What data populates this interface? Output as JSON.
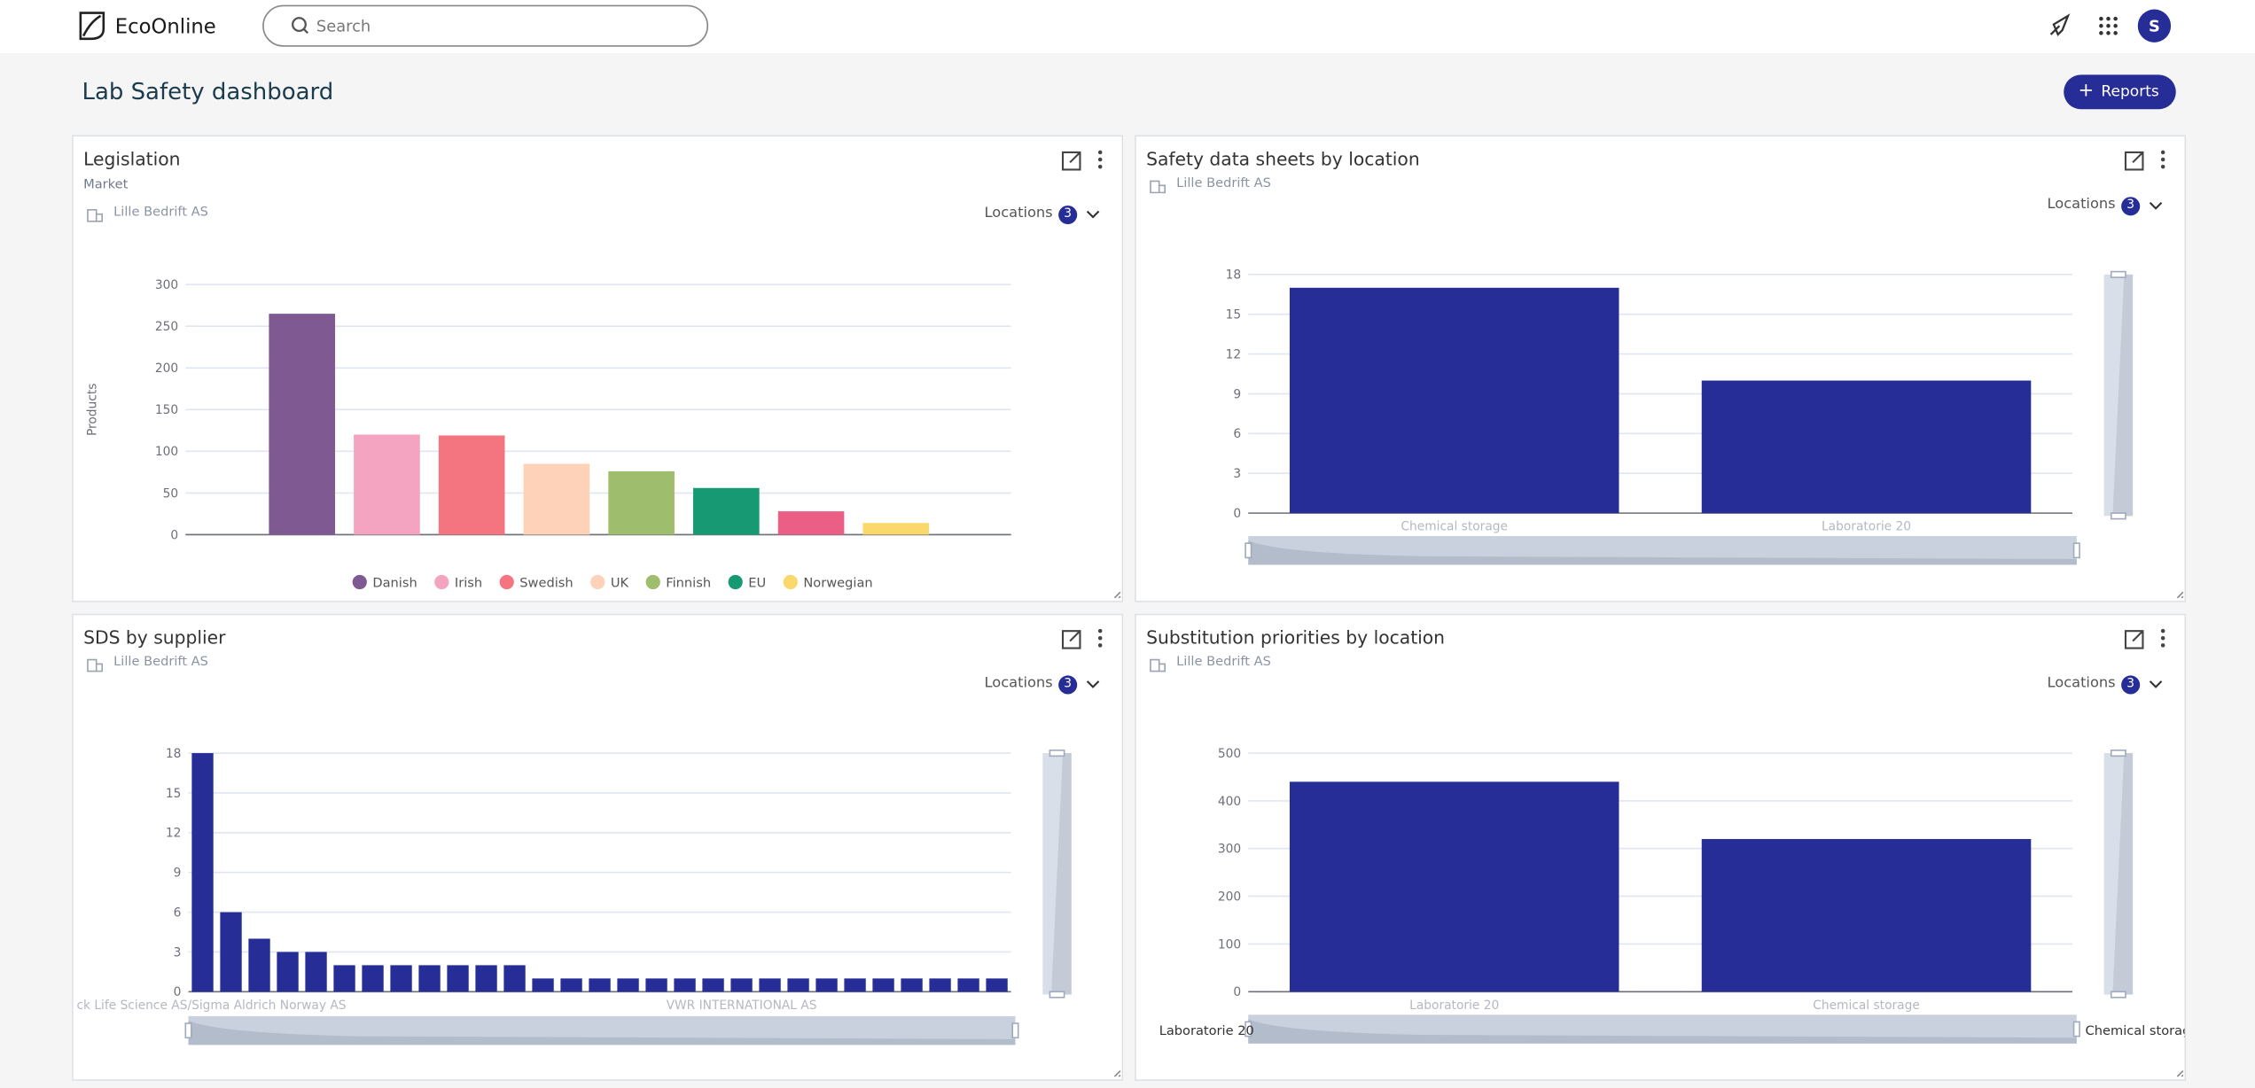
{
  "header": {
    "brand": "EcoOnline",
    "search_placeholder": "Search",
    "avatar": "S"
  },
  "page": {
    "title": "Lab Safety dashboard",
    "button": "Reports"
  },
  "widgets": [
    {
      "title": "Legislation",
      "subtitle": "Market",
      "organization": "Lille Bedrift AS",
      "filter_label": "Locations",
      "filter_count": 3,
      "chart_data": {
        "type": "bar",
        "ylabel": "Products",
        "categories": [
          "Danish",
          "Irish",
          "Swedish",
          "UK",
          "Finnish",
          "EU",
          null,
          "Norwegian"
        ],
        "values": [
          265,
          120,
          119,
          85,
          76,
          56,
          28,
          14
        ],
        "colors": [
          "#7f5a92",
          "#f4a3c0",
          "#f47580",
          "#fed2b9",
          "#9fbe6d",
          "#179a73",
          "#eb5f86",
          "#fbd86b"
        ],
        "ylim": [
          0,
          300
        ],
        "yticks": [
          0,
          50,
          100,
          150,
          200,
          250,
          300
        ],
        "grid": true,
        "legend": "bottom"
      }
    },
    {
      "title": "Safety data sheets by location",
      "organization": "Lille Bedrift AS",
      "filter_label": "Locations",
      "filter_count": 3,
      "chart_data": {
        "type": "bar",
        "categories": [
          "Chemical storage",
          "Laboratorie 20"
        ],
        "values": [
          17,
          10
        ],
        "color": "#272d96",
        "ylim": [
          0,
          18
        ],
        "yticks": [
          0,
          3,
          6,
          9,
          12,
          15,
          18
        ],
        "grid": true
      }
    },
    {
      "title": "SDS by supplier",
      "organization": "Lille Bedrift AS",
      "filter_label": "Locations",
      "filter_count": 3,
      "chart_data": {
        "type": "bar",
        "categories": [
          "ck Life Science AS/Sigma Aldrich Norway AS",
          null,
          null,
          null,
          null,
          null,
          null,
          null,
          null,
          null,
          null,
          null,
          null,
          null,
          null,
          null,
          null,
          null,
          null,
          "VWR INTERNATIONAL AS",
          null,
          null,
          null,
          null,
          null,
          null,
          null,
          null,
          null
        ],
        "values": [
          18,
          6,
          4,
          3,
          3,
          2,
          2,
          2,
          2,
          2,
          2,
          2,
          1,
          1,
          1,
          1,
          1,
          1,
          1,
          1,
          1,
          1,
          1,
          1,
          1,
          1,
          1,
          1,
          1
        ],
        "color": "#272d96",
        "ylim": [
          0,
          18
        ],
        "yticks": [
          0,
          3,
          6,
          9,
          12,
          15,
          18
        ],
        "grid": true
      }
    },
    {
      "title": "Substitution priorities by location",
      "organization": "Lille Bedrift AS",
      "filter_label": "Locations",
      "filter_count": 3,
      "chart_data": {
        "type": "bar",
        "categories": [
          "Laboratorie 20",
          "Chemical storage"
        ],
        "values": [
          440,
          320
        ],
        "color": "#272d96",
        "ylim": [
          0,
          500
        ],
        "yticks": [
          0,
          100,
          200,
          300,
          400,
          500
        ],
        "grid": true
      }
    }
  ]
}
